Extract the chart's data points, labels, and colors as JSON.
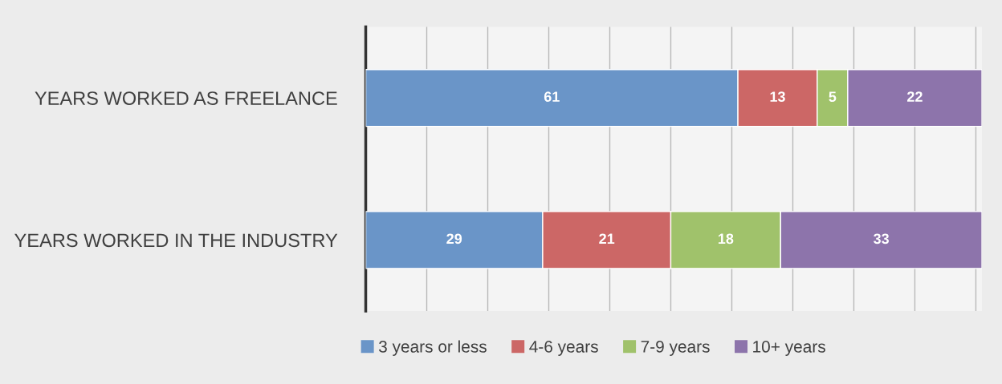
{
  "chart_data": {
    "type": "bar",
    "orientation": "horizontal",
    "stacked": true,
    "data_labels": true,
    "categories": [
      "YEARS WORKED AS FREELANCE",
      "YEARS WORKED IN THE INDUSTRY"
    ],
    "series": [
      {
        "name": "3 years or less",
        "color": "#6a95c8",
        "values": [
          61,
          29
        ]
      },
      {
        "name": "4-6 years",
        "color": "#cc6766",
        "values": [
          13,
          21
        ]
      },
      {
        "name": "7-9 years",
        "color": "#a0c26b",
        "values": [
          5,
          18
        ]
      },
      {
        "name": "10+ years",
        "color": "#8d74ab",
        "values": [
          22,
          33
        ]
      }
    ],
    "xlim": [
      0,
      101
    ],
    "xticks": [
      {
        "value": 0,
        "label": null
      },
      {
        "value": 10,
        "label": null
      },
      {
        "value": 20,
        "label": null
      },
      {
        "value": 30,
        "label": null
      },
      {
        "value": 40,
        "label": null
      },
      {
        "value": 50,
        "label": null
      },
      {
        "value": 60,
        "label": null
      },
      {
        "value": 70,
        "label": null
      },
      {
        "value": 80,
        "label": null
      },
      {
        "value": 90,
        "label": null
      },
      {
        "value": 100,
        "label": null
      }
    ],
    "tick_labels": "y",
    "grid": "x",
    "legend": "bottom"
  }
}
